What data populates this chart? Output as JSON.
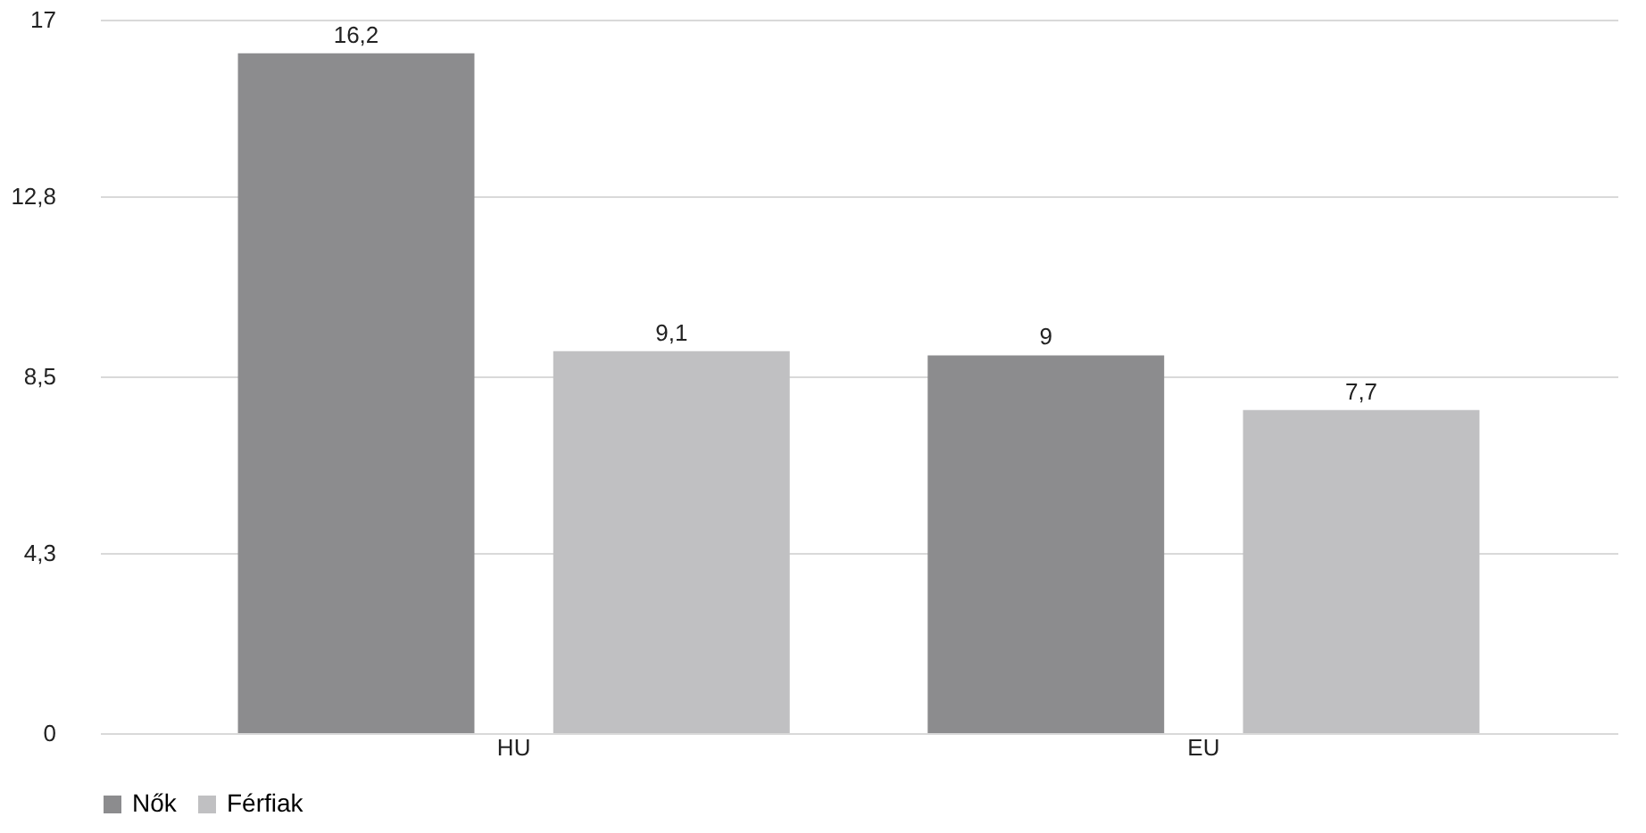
{
  "chart_data": {
    "type": "bar",
    "categories": [
      "HU",
      "EU"
    ],
    "series": [
      {
        "name": "Nők",
        "color": "#8c8c8e",
        "values": [
          16.2,
          9
        ],
        "value_labels": [
          "16,2",
          "9"
        ]
      },
      {
        "name": "Férfiak",
        "color": "#c0c0c2",
        "values": [
          9.1,
          7.7
        ],
        "value_labels": [
          "9,1",
          "7,7"
        ]
      }
    ],
    "ylim": [
      0,
      17
    ],
    "yticks": [
      0,
      {
        "value": 4.3,
        "label": "4,3"
      },
      {
        "value": 8.5,
        "label": "8,5"
      },
      {
        "value": 12.8,
        "label": "12,8"
      },
      17
    ],
    "grid": "y",
    "legend": "bottom"
  }
}
